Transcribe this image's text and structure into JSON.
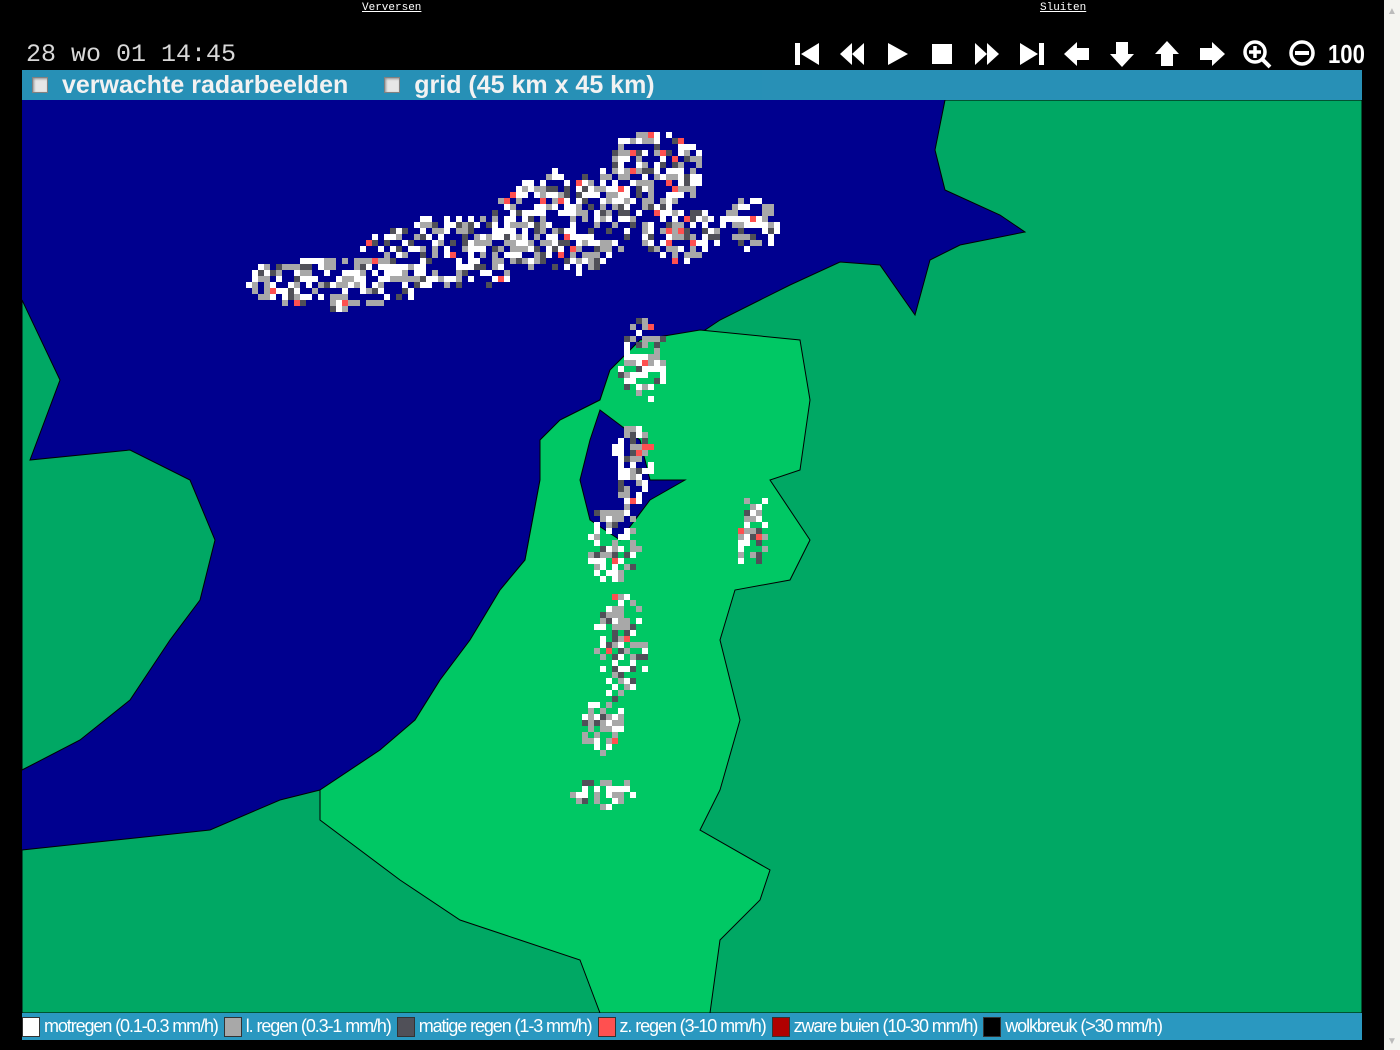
{
  "links": {
    "refresh": "Verversen",
    "close": "Sluiten"
  },
  "timestamp": "28 wo 01 14:45",
  "controls": [
    {
      "name": "first-frame-icon"
    },
    {
      "name": "step-back-icon"
    },
    {
      "name": "play-icon"
    },
    {
      "name": "stop-icon"
    },
    {
      "name": "step-forward-icon"
    },
    {
      "name": "last-frame-icon"
    },
    {
      "name": "pan-left-icon"
    },
    {
      "name": "pan-down-icon"
    },
    {
      "name": "pan-up-icon"
    },
    {
      "name": "pan-right-icon"
    },
    {
      "name": "zoom-in-icon"
    },
    {
      "name": "zoom-out-icon"
    }
  ],
  "zoom_level": "100",
  "options": [
    {
      "label": "verwachte radarbeelden",
      "checked": false
    },
    {
      "label": "grid (45 km x 45 km)",
      "checked": false
    }
  ],
  "map_colors": {
    "sea": "#00008f",
    "land": "#00a864",
    "benelux": "#00c864"
  },
  "legend": [
    {
      "label": "motregen (0.1-0.3 mm/h)",
      "color": "#ffffff"
    },
    {
      "label": "l. regen (0.3-1 mm/h)",
      "color": "#a8a8a8"
    },
    {
      "label": "matige regen (1-3 mm/h)",
      "color": "#505058"
    },
    {
      "label": "z. regen (3-10 mm/h)",
      "color": "#ff5050"
    },
    {
      "label": "zware buien (10-30 mm/h)",
      "color": "#b00000"
    },
    {
      "label": "wolkbreuk (>30 mm/h)",
      "color": "#000000"
    }
  ]
}
